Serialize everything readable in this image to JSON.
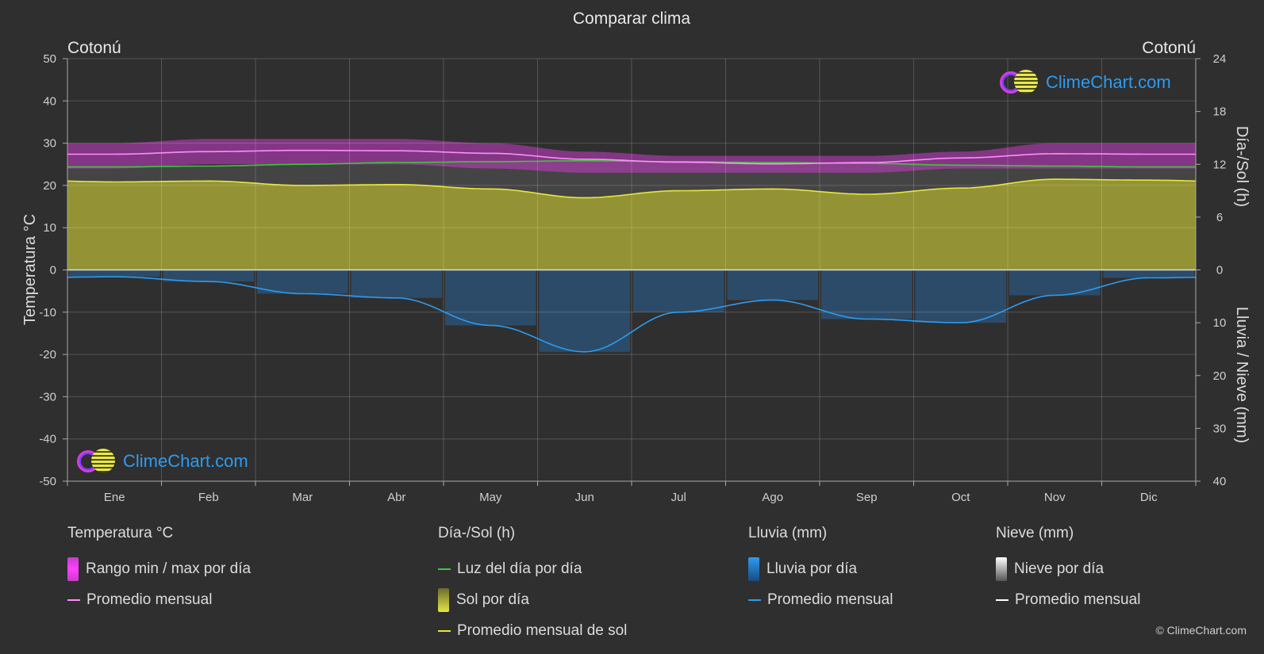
{
  "chart_data": {
    "type": "area",
    "title": "Comparar clima",
    "location_left": "Cotonú",
    "location_right": "Cotonú",
    "ylabel_left": "Temperatura °C",
    "ylabel_right_top": "Día-/Sol (h)",
    "ylabel_right_bottom": "Lluvia / Nieve (mm)",
    "temp_ticks": [
      "50",
      "40",
      "30",
      "20",
      "10",
      "0",
      "-10",
      "-20",
      "-30",
      "-40",
      "-50"
    ],
    "sun_ticks": [
      "24",
      "18",
      "12",
      "6",
      "0"
    ],
    "rain_ticks": [
      "0",
      "10",
      "20",
      "30",
      "40"
    ],
    "ylim_temp": [
      -50,
      50
    ],
    "ylim_sun_hours": [
      0,
      24
    ],
    "ylim_rain_mm": [
      0,
      40
    ],
    "months": [
      "Ene",
      "Feb",
      "Mar",
      "Abr",
      "May",
      "Jun",
      "Jul",
      "Ago",
      "Sep",
      "Oct",
      "Nov",
      "Dic"
    ],
    "series": [
      {
        "name": "Rango min / max por día",
        "unit": "°C",
        "min": [
          24,
          25,
          25,
          25,
          24,
          23,
          23,
          23,
          23,
          24,
          24,
          24
        ],
        "max": [
          30,
          31,
          31,
          31,
          30,
          28,
          27,
          27,
          27,
          28,
          30,
          30
        ]
      },
      {
        "name": "Promedio mensual",
        "unit": "°C",
        "values": [
          27.4,
          28.0,
          28.3,
          28.2,
          27.6,
          26.2,
          25.5,
          25.1,
          25.4,
          26.5,
          27.5,
          27.4
        ]
      },
      {
        "name": "Luz del día por día",
        "unit": "h",
        "values": [
          11.7,
          11.8,
          12.0,
          12.2,
          12.3,
          12.4,
          12.3,
          12.2,
          12.1,
          11.9,
          11.8,
          11.7
        ]
      },
      {
        "name": "Sol por día",
        "unit": "h",
        "values": [
          10.0,
          10.1,
          9.6,
          9.7,
          9.2,
          8.2,
          9.0,
          9.2,
          8.6,
          9.3,
          10.3,
          10.2
        ]
      },
      {
        "name": "Promedio mensual de sol",
        "unit": "h",
        "values": [
          10.0,
          10.1,
          9.6,
          9.7,
          9.2,
          8.2,
          9.0,
          9.2,
          8.6,
          9.3,
          10.3,
          10.2
        ]
      },
      {
        "name": "Lluvia por día",
        "unit": "mm",
        "values": [
          1.3,
          2.2,
          4.5,
          5.3,
          10.5,
          15.5,
          8.0,
          5.7,
          9.3,
          10.0,
          4.8,
          1.5
        ]
      },
      {
        "name": "Promedio mensual",
        "unit": "mm",
        "values": [
          1.3,
          2.2,
          4.5,
          5.3,
          10.5,
          15.5,
          8.0,
          5.7,
          9.3,
          10.0,
          4.8,
          1.5
        ]
      }
    ],
    "colors": {
      "temp_range": "#c83cc8",
      "temp_avg": "#ff8cff",
      "daylight": "#3cc83c",
      "sun": "#a8a832",
      "sun_avg": "#e6e640",
      "rain": "#2a6fb0",
      "rain_avg": "#2d9bf0",
      "snow_avg": "#ffffff"
    },
    "grid": true
  },
  "legend": {
    "temp": {
      "title": "Temperatura °C",
      "item1": "Rango min / max por día",
      "item2": "Promedio mensual"
    },
    "sun": {
      "title": "Día-/Sol (h)",
      "item1": "Luz del día por día",
      "item2": "Sol por día",
      "item3": "Promedio mensual de sol"
    },
    "rain": {
      "title": "Lluvia (mm)",
      "item1": "Lluvia por día",
      "item2": "Promedio mensual"
    },
    "snow": {
      "title": "Nieve (mm)",
      "item1": "Nieve por día",
      "item2": "Promedio mensual"
    }
  },
  "branding": {
    "logo_text": "ClimeChart.com",
    "copyright": "© ClimeChart.com"
  }
}
